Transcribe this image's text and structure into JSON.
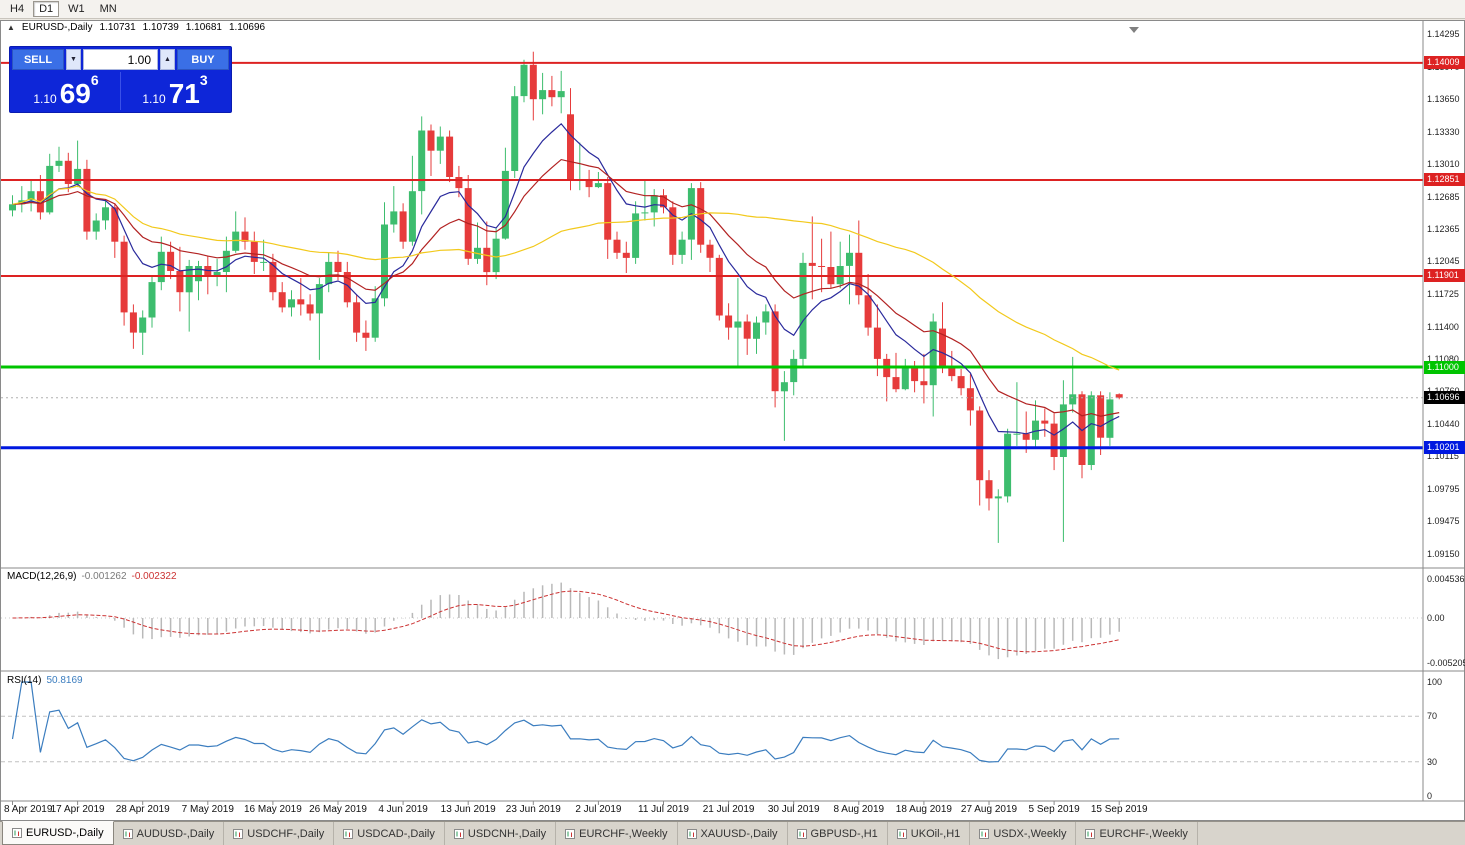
{
  "toolbar": {
    "timeframes": [
      "H4",
      "D1",
      "W1",
      "MN"
    ],
    "active": "D1"
  },
  "chart": {
    "collapse_icon": "▲",
    "symbol_period": "EURUSD-,Daily",
    "open": "1.10731",
    "high": "1.10739",
    "low": "1.10681",
    "close": "1.10696"
  },
  "trade_panel": {
    "sell_label": "SELL",
    "buy_label": "BUY",
    "volume": "1.00",
    "spin_down_icon": "▼",
    "spin_up_icon": "▲",
    "sell_price": {
      "prefix": "1.10",
      "big": "69",
      "sup": "6"
    },
    "buy_price": {
      "prefix": "1.10",
      "big": "71",
      "sup": "3"
    }
  },
  "chart_data": {
    "type": "candlestick",
    "title": "EURUSD-,Daily",
    "symbol": "EURUSD-",
    "timeframe": "Daily",
    "ylim": [
      1.0915,
      1.14295
    ],
    "price_ticks": [
      "1.14295",
      "1.13970",
      "1.13650",
      "1.13330",
      "1.13010",
      "1.12685",
      "1.12365",
      "1.12045",
      "1.11725",
      "1.11400",
      "1.11080",
      "1.10760",
      "1.10440",
      "1.10115",
      "1.09795",
      "1.09475",
      "1.09150"
    ],
    "x_tick_labels": [
      "8 Apr 2019",
      "17 Apr 2019",
      "28 Apr 2019",
      "7 May 2019",
      "16 May 2019",
      "26 May 2019",
      "4 Jun 2019",
      "13 Jun 2019",
      "23 Jun 2019",
      "2 Jul 2019",
      "11 Jul 2019",
      "21 Jul 2019",
      "30 Jul 2019",
      "8 Aug 2019",
      "18 Aug 2019",
      "27 Aug 2019",
      "5 Sep 2019",
      "15 Sep 2019"
    ],
    "x_tick_interval": 7,
    "colors": {
      "up": "#3dbd6e",
      "down": "#e63b3b",
      "background": "#ffffff"
    },
    "levels": [
      {
        "value": 1.14009,
        "label": "1.14009",
        "color": "#dd2222",
        "width": 2
      },
      {
        "value": 1.12851,
        "label": "1.12851",
        "color": "#dd2222",
        "width": 2
      },
      {
        "value": 1.11901,
        "label": "1.11901",
        "color": "#dd2222",
        "width": 2
      },
      {
        "value": 1.11,
        "label": "1.11000",
        "color": "#00c400",
        "width": 3
      },
      {
        "value": 1.10201,
        "label": "1.10201",
        "color": "#0018e0",
        "width": 3
      }
    ],
    "bid": {
      "value": 1.10696,
      "label": "1.10696",
      "color": "#000000"
    },
    "moving_averages": [
      {
        "period": 9,
        "method": "ema",
        "color": "#2a2a9c"
      },
      {
        "period": 18,
        "method": "ema",
        "color": "#b22222"
      },
      {
        "period": 45,
        "method": "sma",
        "color": "#f2c91c"
      }
    ],
    "macd": {
      "name": "MACD(12,26,9)",
      "value_main": "-0.001262",
      "value_signal": "-0.002322",
      "fast": 12,
      "slow": 26,
      "signal": 9,
      "scale": [
        "0.004536",
        "0.00",
        "-0.005205"
      ],
      "histogram_color": "#b9b9b9",
      "signal_color": "#cc3333"
    },
    "rsi": {
      "name": "RSI(14)",
      "value": "50.8169",
      "period": 14,
      "levels": [
        70,
        30
      ],
      "scale": [
        "100",
        "70",
        "30",
        "0"
      ],
      "color": "#3b7dbf"
    },
    "candles": [
      [
        1.1255,
        1.127,
        1.1249,
        1.1261
      ],
      [
        1.1261,
        1.1279,
        1.1253,
        1.1265
      ],
      [
        1.1265,
        1.1286,
        1.1254,
        1.1274
      ],
      [
        1.1274,
        1.129,
        1.1246,
        1.1253
      ],
      [
        1.1253,
        1.1311,
        1.1251,
        1.1299
      ],
      [
        1.1299,
        1.1318,
        1.1293,
        1.1304
      ],
      [
        1.1304,
        1.1312,
        1.1273,
        1.1281
      ],
      [
        1.1281,
        1.1324,
        1.1278,
        1.1296
      ],
      [
        1.1296,
        1.1305,
        1.1226,
        1.1234
      ],
      [
        1.1234,
        1.1252,
        1.1226,
        1.1245
      ],
      [
        1.1245,
        1.1264,
        1.1236,
        1.1258
      ],
      [
        1.1258,
        1.1262,
        1.1208,
        1.1224
      ],
      [
        1.1224,
        1.123,
        1.1141,
        1.1154
      ],
      [
        1.1154,
        1.1162,
        1.1118,
        1.1134
      ],
      [
        1.1134,
        1.1156,
        1.1112,
        1.1149
      ],
      [
        1.1149,
        1.119,
        1.1139,
        1.1184
      ],
      [
        1.1184,
        1.1229,
        1.1176,
        1.1214
      ],
      [
        1.1214,
        1.1224,
        1.1187,
        1.1195
      ],
      [
        1.1195,
        1.1219,
        1.1155,
        1.1174
      ],
      [
        1.1174,
        1.1206,
        1.1135,
        1.12
      ],
      [
        1.1185,
        1.1205,
        1.1166,
        1.12
      ],
      [
        1.12,
        1.121,
        1.1172,
        1.119
      ],
      [
        1.119,
        1.1207,
        1.118,
        1.1194
      ],
      [
        1.1194,
        1.1229,
        1.1174,
        1.1215
      ],
      [
        1.1215,
        1.1254,
        1.1213,
        1.1234
      ],
      [
        1.1234,
        1.1248,
        1.1216,
        1.1224
      ],
      [
        1.1224,
        1.1234,
        1.1192,
        1.1204
      ],
      [
        1.1204,
        1.1226,
        1.1195,
        1.1204
      ],
      [
        1.1204,
        1.1212,
        1.1166,
        1.1174
      ],
      [
        1.1174,
        1.1184,
        1.1154,
        1.1159
      ],
      [
        1.1159,
        1.1176,
        1.115,
        1.1167
      ],
      [
        1.1167,
        1.1188,
        1.1151,
        1.1162
      ],
      [
        1.1162,
        1.1172,
        1.1146,
        1.1153
      ],
      [
        1.1153,
        1.1188,
        1.1107,
        1.1182
      ],
      [
        1.1182,
        1.1213,
        1.1174,
        1.1204
      ],
      [
        1.1204,
        1.1215,
        1.1186,
        1.1194
      ],
      [
        1.1194,
        1.1204,
        1.1159,
        1.1164
      ],
      [
        1.1164,
        1.1172,
        1.1125,
        1.1134
      ],
      [
        1.1134,
        1.1146,
        1.1116,
        1.1129
      ],
      [
        1.1129,
        1.118,
        1.1125,
        1.1168
      ],
      [
        1.1168,
        1.1263,
        1.116,
        1.1241
      ],
      [
        1.1241,
        1.1279,
        1.1233,
        1.1254
      ],
      [
        1.1254,
        1.1262,
        1.1217,
        1.1224
      ],
      [
        1.1224,
        1.1309,
        1.122,
        1.1274
      ],
      [
        1.1274,
        1.1348,
        1.1251,
        1.1334
      ],
      [
        1.1334,
        1.134,
        1.1289,
        1.1314
      ],
      [
        1.1314,
        1.1338,
        1.1301,
        1.1328
      ],
      [
        1.1328,
        1.1334,
        1.1283,
        1.1288
      ],
      [
        1.1288,
        1.1299,
        1.1268,
        1.1277
      ],
      [
        1.1277,
        1.129,
        1.1201,
        1.1207
      ],
      [
        1.1207,
        1.1243,
        1.1202,
        1.1218
      ],
      [
        1.1218,
        1.1244,
        1.1181,
        1.1194
      ],
      [
        1.1194,
        1.1237,
        1.1187,
        1.1227
      ],
      [
        1.1227,
        1.1317,
        1.1226,
        1.1294
      ],
      [
        1.1294,
        1.1378,
        1.1287,
        1.1368
      ],
      [
        1.1368,
        1.1404,
        1.1362,
        1.1399
      ],
      [
        1.1399,
        1.1412,
        1.1344,
        1.1365
      ],
      [
        1.1365,
        1.1391,
        1.135,
        1.1374
      ],
      [
        1.1374,
        1.1388,
        1.1358,
        1.1367
      ],
      [
        1.1367,
        1.1393,
        1.1351,
        1.1373
      ],
      [
        1.135,
        1.1376,
        1.1275,
        1.1285
      ],
      [
        1.1285,
        1.1322,
        1.1275,
        1.1286
      ],
      [
        1.1286,
        1.1295,
        1.1268,
        1.1278
      ],
      [
        1.1278,
        1.1293,
        1.1277,
        1.1282
      ],
      [
        1.1282,
        1.1288,
        1.1207,
        1.1226
      ],
      [
        1.1226,
        1.1234,
        1.1207,
        1.1213
      ],
      [
        1.1213,
        1.1224,
        1.1193,
        1.1208
      ],
      [
        1.1208,
        1.1264,
        1.1202,
        1.1252
      ],
      [
        1.1252,
        1.1286,
        1.1245,
        1.1253
      ],
      [
        1.1253,
        1.1276,
        1.1239,
        1.127
      ],
      [
        1.127,
        1.1276,
        1.1252,
        1.1258
      ],
      [
        1.1258,
        1.1264,
        1.1201,
        1.1211
      ],
      [
        1.1211,
        1.1234,
        1.1202,
        1.1226
      ],
      [
        1.1226,
        1.1282,
        1.1206,
        1.1277
      ],
      [
        1.1277,
        1.1283,
        1.1213,
        1.1221
      ],
      [
        1.1221,
        1.1226,
        1.1194,
        1.1208
      ],
      [
        1.1208,
        1.1211,
        1.1146,
        1.1151
      ],
      [
        1.1151,
        1.1163,
        1.1127,
        1.1139
      ],
      [
        1.1139,
        1.1188,
        1.1101,
        1.1145
      ],
      [
        1.1145,
        1.1152,
        1.1112,
        1.1128
      ],
      [
        1.1128,
        1.115,
        1.1113,
        1.1144
      ],
      [
        1.1144,
        1.1162,
        1.1132,
        1.1155
      ],
      [
        1.1155,
        1.1162,
        1.106,
        1.1076
      ],
      [
        1.1076,
        1.1096,
        1.1027,
        1.1085
      ],
      [
        1.1085,
        1.1117,
        1.1072,
        1.1108
      ],
      [
        1.1108,
        1.1213,
        1.1101,
        1.1203
      ],
      [
        1.1203,
        1.1249,
        1.1167,
        1.12
      ],
      [
        1.12,
        1.1227,
        1.1174,
        1.1199
      ],
      [
        1.1199,
        1.1234,
        1.1178,
        1.1182
      ],
      [
        1.1182,
        1.1224,
        1.1178,
        1.12
      ],
      [
        1.12,
        1.1231,
        1.1162,
        1.1213
      ],
      [
        1.1213,
        1.1245,
        1.1162,
        1.1171
      ],
      [
        1.1171,
        1.1192,
        1.1131,
        1.1139
      ],
      [
        1.1139,
        1.1162,
        1.1091,
        1.1108
      ],
      [
        1.1108,
        1.1113,
        1.1066,
        1.109
      ],
      [
        1.109,
        1.1114,
        1.1075,
        1.1078
      ],
      [
        1.1078,
        1.1108,
        1.1077,
        1.11
      ],
      [
        1.11,
        1.1106,
        1.1075,
        1.1086
      ],
      [
        1.1086,
        1.1113,
        1.1064,
        1.1082
      ],
      [
        1.1082,
        1.1153,
        1.1051,
        1.1145
      ],
      [
        1.1138,
        1.1164,
        1.1094,
        1.1101
      ],
      [
        1.1101,
        1.1116,
        1.1086,
        1.1091
      ],
      [
        1.1091,
        1.1098,
        1.1072,
        1.1079
      ],
      [
        1.1079,
        1.1093,
        1.1042,
        1.1057
      ],
      [
        1.1057,
        1.1061,
        1.0963,
        1.0988
      ],
      [
        1.0988,
        1.0998,
        1.0958,
        1.097
      ],
      [
        1.097,
        1.0979,
        1.0926,
        1.0972
      ],
      [
        1.0972,
        1.1039,
        1.0966,
        1.1034
      ],
      [
        1.1034,
        1.1085,
        1.1022,
        1.1034
      ],
      [
        1.1034,
        1.1056,
        1.1015,
        1.1028
      ],
      [
        1.1028,
        1.1067,
        1.1019,
        1.1047
      ],
      [
        1.1047,
        1.1059,
        1.1031,
        1.1044
      ],
      [
        1.1044,
        1.1054,
        1.0998,
        1.1011
      ],
      [
        1.1011,
        1.1087,
        1.0927,
        1.1063
      ],
      [
        1.1063,
        1.111,
        1.1055,
        1.1073
      ],
      [
        1.1073,
        1.1076,
        1.099,
        1.1003
      ],
      [
        1.1003,
        1.1076,
        1.0998,
        1.1072
      ],
      [
        1.1072,
        1.1076,
        1.1013,
        1.103
      ],
      [
        1.103,
        1.1075,
        1.1022,
        1.1068
      ],
      [
        1.10731,
        1.10739,
        1.10681,
        1.10696
      ]
    ]
  },
  "tabs": {
    "items": [
      {
        "label": "EURUSD-,Daily",
        "active": true
      },
      {
        "label": "AUDUSD-,Daily",
        "active": false
      },
      {
        "label": "USDCHF-,Daily",
        "active": false
      },
      {
        "label": "USDCAD-,Daily",
        "active": false
      },
      {
        "label": "USDCNH-,Daily",
        "active": false
      },
      {
        "label": "EURCHF-,Weekly",
        "active": false
      },
      {
        "label": "XAUUSD-,Daily",
        "active": false
      },
      {
        "label": "GBPUSD-,H1",
        "active": false
      },
      {
        "label": "UKOil-,H1",
        "active": false
      },
      {
        "label": "USDX-,Weekly",
        "active": false
      },
      {
        "label": "EURCHF-,Weekly",
        "active": false
      }
    ]
  }
}
